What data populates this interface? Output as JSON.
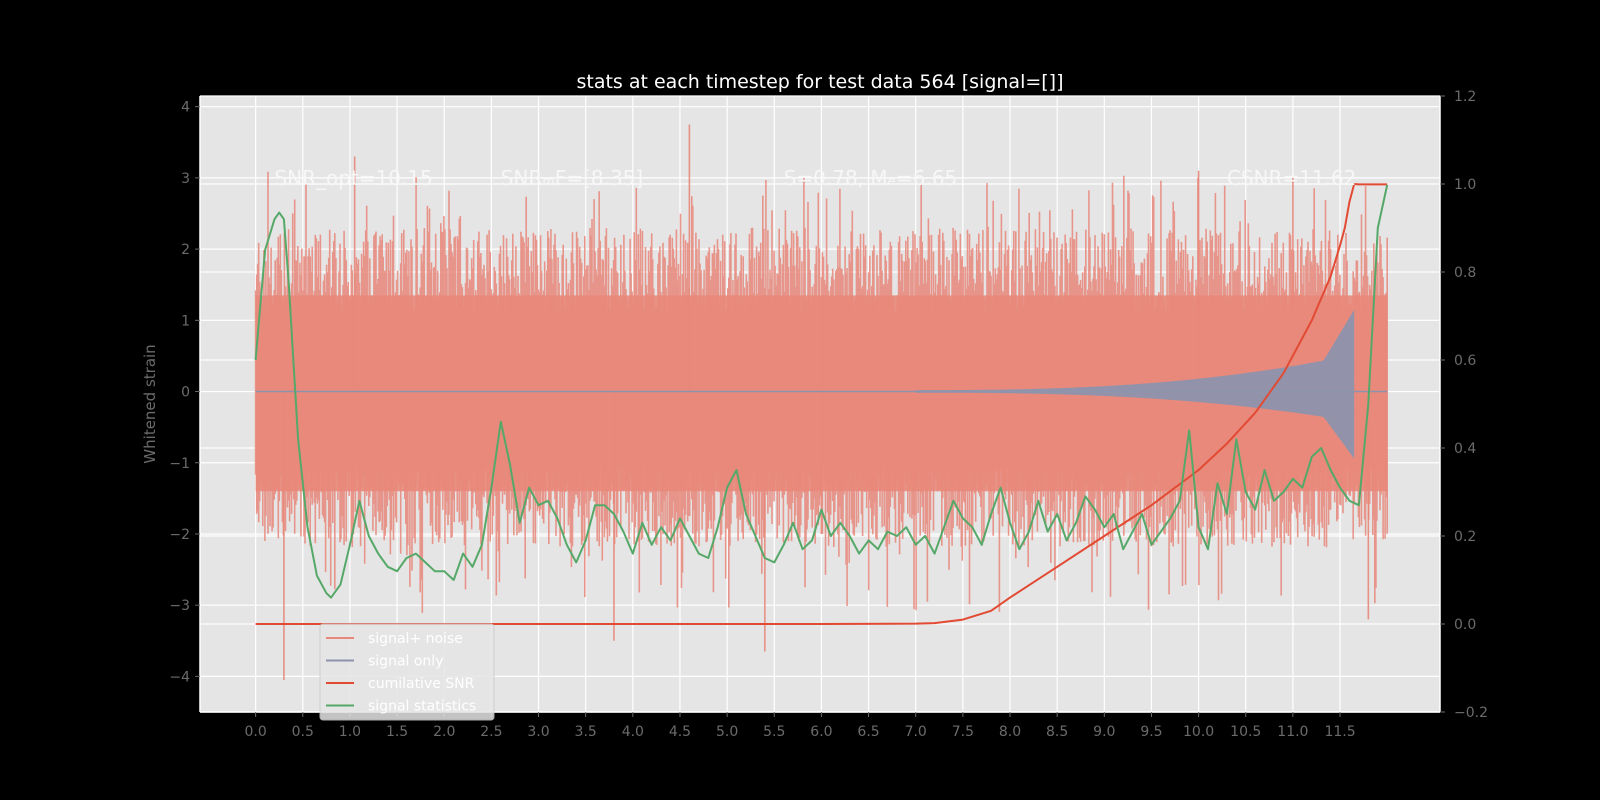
{
  "chart_data": {
    "type": "line",
    "title": "stats at each timestep for test data 564 [signal=[]]",
    "xlabel": "",
    "ylabel": "Whitened strain",
    "xlim": [
      -0.59,
      12.56
    ],
    "ylim": [
      -4.5,
      4.15
    ],
    "y2lim": [
      -0.2,
      1.2
    ],
    "x_ticks": [
      0.0,
      0.5,
      1.0,
      1.5,
      2.0,
      2.5,
      3.0,
      3.5,
      4.0,
      4.5,
      5.0,
      5.5,
      6.0,
      6.5,
      7.0,
      7.5,
      8.0,
      8.5,
      9.0,
      9.5,
      10.0,
      10.5,
      11.0,
      11.5
    ],
    "x_tick_labels": [
      "0.0",
      "0.5",
      "1.0",
      "1.5",
      "2.0",
      "2.5",
      "3.0",
      "3.5",
      "4.0",
      "4.5",
      "5.0",
      "5.5",
      "6.0",
      "6.5",
      "7.0",
      "7.5",
      "8.0",
      "8.5",
      "9.0",
      "9.5",
      "10.0",
      "10.5",
      "11.0",
      "11.5"
    ],
    "y_ticks": [
      -4,
      -3,
      -2,
      -1,
      0,
      1,
      2,
      3,
      4
    ],
    "y_tick_labels": [
      "−4",
      "−3",
      "−2",
      "−1",
      "0",
      "1",
      "2",
      "3",
      "4"
    ],
    "y2_ticks": [
      -0.2,
      0.0,
      0.2,
      0.4,
      0.6,
      0.8,
      1.0,
      1.2
    ],
    "y2_tick_labels": [
      "−0.2",
      "0.0",
      "0.2",
      "0.4",
      "0.6",
      "0.8",
      "1.0",
      "1.2"
    ],
    "grid": true,
    "legend_position": "lower-left",
    "annotations": [
      {
        "text": "SNR_opt=10.15",
        "x": 0.2,
        "y": 3.0
      },
      {
        "text": "SNRₘF=[8.35]",
        "x": 2.6,
        "y": 3.0
      },
      {
        "text": "S=0.78,  Mₑ=6.65",
        "x": 5.6,
        "y": 3.0
      },
      {
        "text": "CSNR=11.62",
        "x": 10.3,
        "y": 3.0
      }
    ],
    "series": [
      {
        "name": "signal+ noise",
        "axis": "left",
        "color": "#e8877a",
        "style": "noise-band",
        "x_range": [
          0.0,
          12.0
        ],
        "typical_envelope": [
          -1.9,
          2.0
        ],
        "outliers": [
          {
            "x": 0.3,
            "y": -4.05
          },
          {
            "x": 1.05,
            "y": 3.3
          },
          {
            "x": 3.8,
            "y": -3.5
          },
          {
            "x": 4.6,
            "y": 3.75
          },
          {
            "x": 5.4,
            "y": -3.65
          },
          {
            "x": 6.0,
            "y": 1.3
          },
          {
            "x": 6.0,
            "y": -2.0
          },
          {
            "x": 10.0,
            "y": 3.1
          },
          {
            "x": 11.0,
            "y": 3.0
          },
          {
            "x": 11.8,
            "y": -3.2
          }
        ]
      },
      {
        "name": "signal only",
        "axis": "left",
        "color": "#8d93ad",
        "style": "chirp",
        "x_range": [
          0.0,
          12.0
        ],
        "chirp_start": 7.0,
        "merger_x": 11.65,
        "merger_amplitude": 1.15
      },
      {
        "name": "cumilative SNR",
        "axis": "right",
        "color": "#e24a33",
        "x": [
          0.0,
          6.0,
          7.0,
          7.2,
          7.5,
          7.8,
          8.0,
          8.5,
          9.0,
          9.5,
          10.0,
          10.3,
          10.6,
          10.9,
          11.2,
          11.4,
          11.5,
          11.55,
          11.6,
          11.65,
          11.7,
          12.0
        ],
        "y": [
          0.0,
          0.0,
          0.001,
          0.002,
          0.01,
          0.03,
          0.06,
          0.13,
          0.2,
          0.27,
          0.35,
          0.41,
          0.48,
          0.57,
          0.69,
          0.79,
          0.86,
          0.9,
          0.96,
          1.0,
          0.999,
          0.999
        ]
      },
      {
        "name": "signal statistics",
        "axis": "right",
        "color": "#55a868",
        "x": [
          0.0,
          0.1,
          0.2,
          0.25,
          0.3,
          0.35,
          0.45,
          0.55,
          0.65,
          0.75,
          0.8,
          0.9,
          1.0,
          1.1,
          1.2,
          1.3,
          1.4,
          1.5,
          1.6,
          1.7,
          1.8,
          1.9,
          2.0,
          2.1,
          2.2,
          2.3,
          2.4,
          2.5,
          2.6,
          2.7,
          2.8,
          2.9,
          3.0,
          3.1,
          3.2,
          3.3,
          3.4,
          3.5,
          3.6,
          3.7,
          3.8,
          3.9,
          4.0,
          4.1,
          4.2,
          4.3,
          4.4,
          4.5,
          4.6,
          4.7,
          4.8,
          4.9,
          5.0,
          5.1,
          5.2,
          5.3,
          5.4,
          5.5,
          5.6,
          5.7,
          5.8,
          5.9,
          6.0,
          6.1,
          6.2,
          6.3,
          6.4,
          6.5,
          6.6,
          6.7,
          6.8,
          6.9,
          7.0,
          7.1,
          7.2,
          7.3,
          7.4,
          7.5,
          7.6,
          7.7,
          7.8,
          7.9,
          8.0,
          8.1,
          8.2,
          8.3,
          8.4,
          8.5,
          8.6,
          8.7,
          8.8,
          8.9,
          9.0,
          9.1,
          9.2,
          9.3,
          9.4,
          9.5,
          9.6,
          9.7,
          9.8,
          9.9,
          10.0,
          10.1,
          10.2,
          10.3,
          10.4,
          10.5,
          10.6,
          10.7,
          10.8,
          10.9,
          11.0,
          11.1,
          11.2,
          11.3,
          11.4,
          11.5,
          11.6,
          11.7,
          11.8,
          11.9,
          12.0
        ],
        "y": [
          0.6,
          0.85,
          0.92,
          0.935,
          0.92,
          0.78,
          0.42,
          0.22,
          0.11,
          0.07,
          0.06,
          0.09,
          0.18,
          0.28,
          0.2,
          0.16,
          0.13,
          0.12,
          0.15,
          0.16,
          0.14,
          0.12,
          0.12,
          0.1,
          0.16,
          0.13,
          0.18,
          0.31,
          0.46,
          0.36,
          0.23,
          0.31,
          0.27,
          0.28,
          0.24,
          0.18,
          0.14,
          0.19,
          0.27,
          0.27,
          0.25,
          0.21,
          0.16,
          0.23,
          0.18,
          0.22,
          0.19,
          0.24,
          0.2,
          0.16,
          0.15,
          0.22,
          0.31,
          0.35,
          0.25,
          0.2,
          0.15,
          0.14,
          0.18,
          0.23,
          0.17,
          0.19,
          0.26,
          0.2,
          0.23,
          0.2,
          0.16,
          0.19,
          0.17,
          0.21,
          0.2,
          0.22,
          0.18,
          0.2,
          0.16,
          0.22,
          0.28,
          0.24,
          0.22,
          0.18,
          0.25,
          0.31,
          0.23,
          0.17,
          0.21,
          0.28,
          0.21,
          0.25,
          0.19,
          0.23,
          0.29,
          0.26,
          0.22,
          0.25,
          0.17,
          0.21,
          0.25,
          0.18,
          0.21,
          0.24,
          0.28,
          0.44,
          0.22,
          0.17,
          0.32,
          0.25,
          0.42,
          0.3,
          0.26,
          0.35,
          0.28,
          0.3,
          0.33,
          0.31,
          0.38,
          0.4,
          0.35,
          0.31,
          0.28,
          0.27,
          0.5,
          0.9,
          0.998
        ]
      }
    ]
  }
}
